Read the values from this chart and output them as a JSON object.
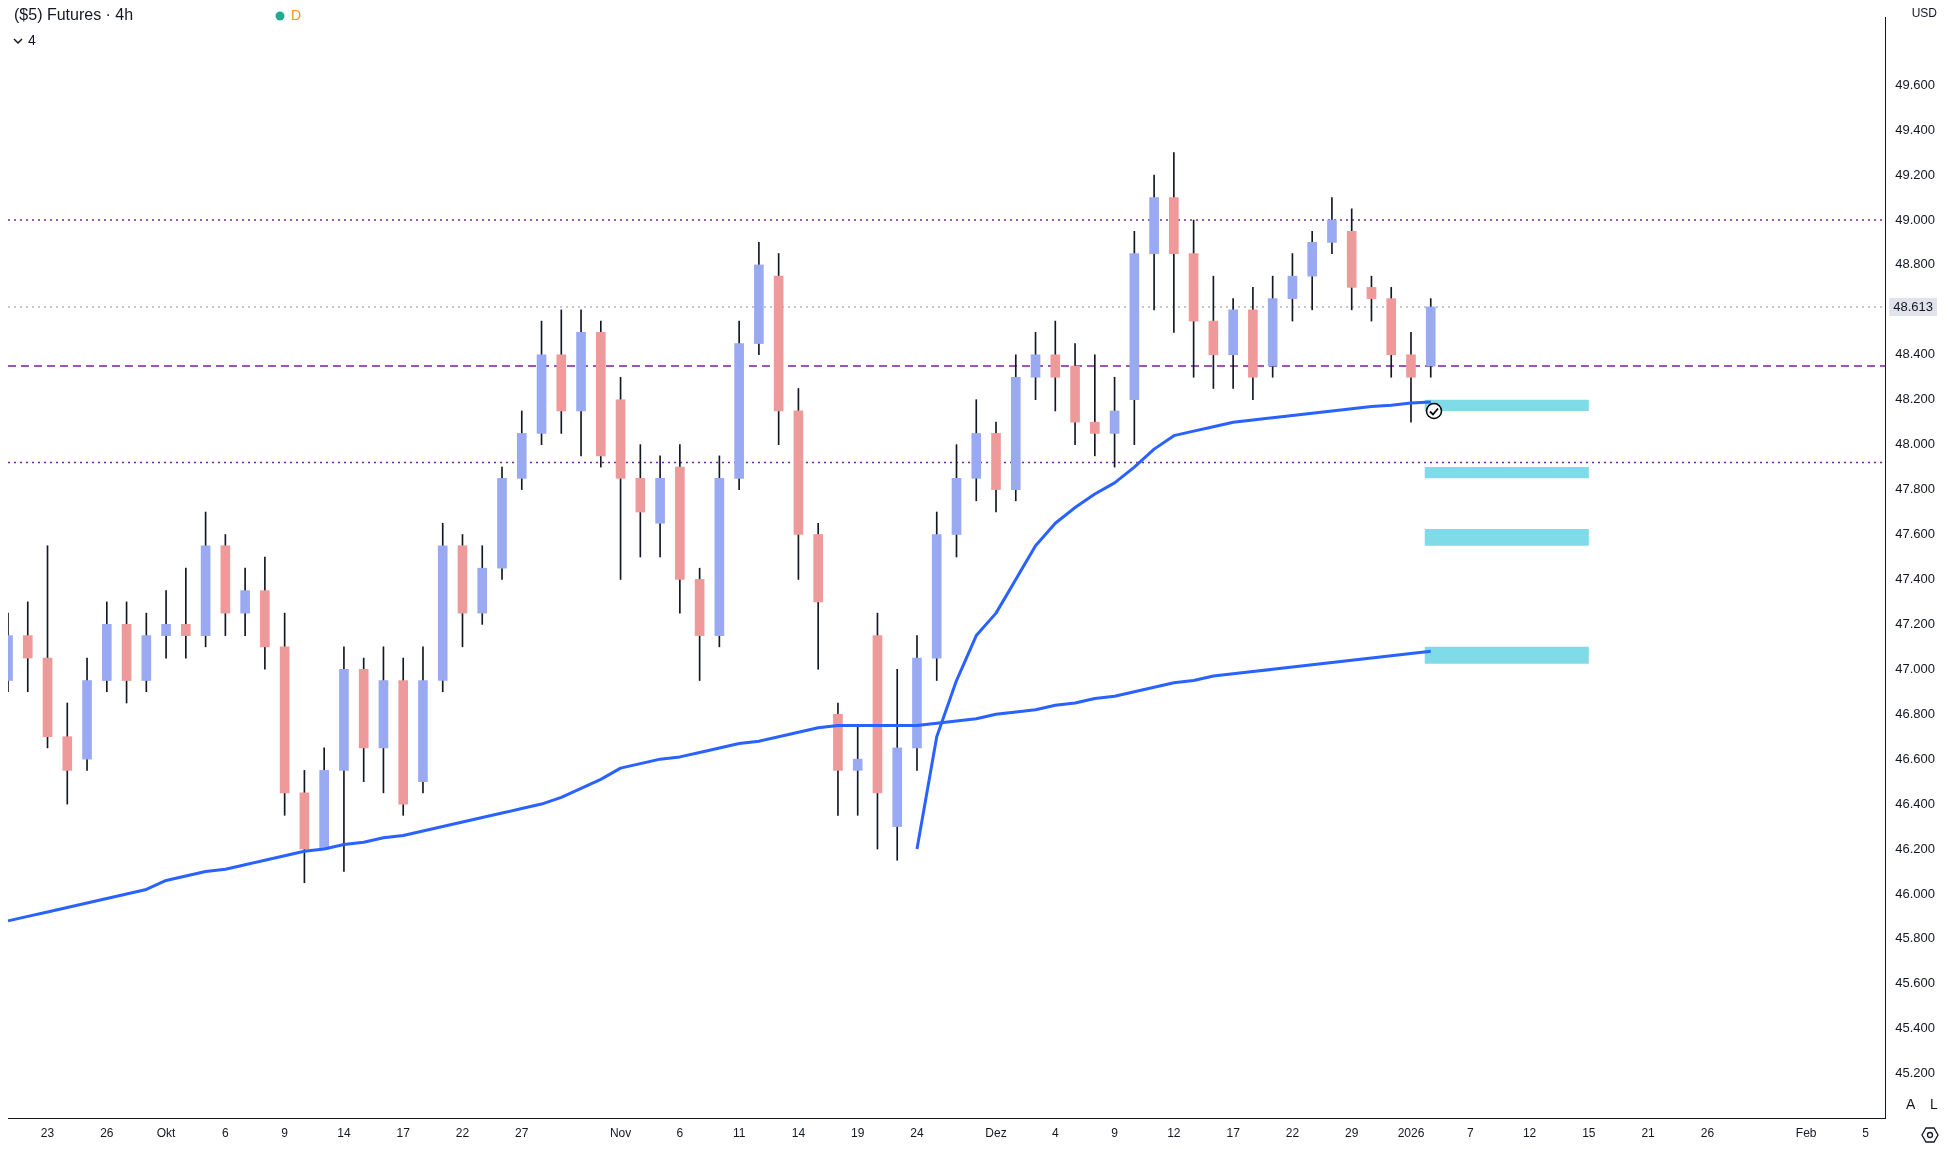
{
  "chart_data": {
    "type": "candlestick",
    "title": "($5) Futures · 4h",
    "ylabel": "USD",
    "annotations": [
      "4",
      "D",
      "A",
      "L"
    ],
    "categories": [
      null,
      null,
      "23",
      null,
      null,
      "26",
      null,
      null,
      "Okt",
      null,
      null,
      "6",
      null,
      null,
      "9",
      null,
      null,
      "14",
      null,
      null,
      "17",
      null,
      null,
      "22",
      null,
      null,
      "27",
      null,
      null,
      null,
      null,
      "Nov",
      null,
      null,
      "6",
      null,
      null,
      "11",
      null,
      null,
      "14",
      null,
      null,
      "19",
      null,
      null,
      "24",
      null,
      null,
      null,
      "Dez",
      null,
      null,
      "4",
      null,
      null,
      "9",
      null,
      null,
      "12",
      null,
      null,
      "17",
      null,
      null,
      "22",
      null,
      null,
      "29",
      null,
      null,
      "2026",
      null,
      null,
      "7",
      null,
      null,
      "12",
      null,
      null,
      "15",
      null,
      null,
      "21",
      null,
      null,
      "26",
      null,
      null,
      null,
      null,
      "Feb",
      null,
      null,
      "5",
      null
    ],
    "ohlc": [
      [
        46950,
        47250,
        46900,
        47150
      ],
      [
        47150,
        47300,
        46900,
        47050
      ],
      [
        47050,
        47550,
        46650,
        46700
      ],
      [
        46700,
        46850,
        46400,
        46550
      ],
      [
        46600,
        47050,
        46550,
        46950
      ],
      [
        46950,
        47300,
        46900,
        47200
      ],
      [
        47200,
        47300,
        46850,
        46950
      ],
      [
        46950,
        47250,
        46900,
        47150
      ],
      [
        47150,
        47350,
        47050,
        47200
      ],
      [
        47200,
        47450,
        47050,
        47150
      ],
      [
        47150,
        47700,
        47100,
        47550
      ],
      [
        47550,
        47600,
        47150,
        47250
      ],
      [
        47250,
        47450,
        47150,
        47350
      ],
      [
        47350,
        47500,
        47000,
        47100
      ],
      [
        47100,
        47250,
        46350,
        46450
      ],
      [
        46450,
        46550,
        46050,
        46200
      ],
      [
        46200,
        46650,
        46200,
        46550
      ],
      [
        46550,
        47100,
        46100,
        47000
      ],
      [
        47000,
        47050,
        46500,
        46650
      ],
      [
        46650,
        47100,
        46450,
        46950
      ],
      [
        46950,
        47050,
        46350,
        46400
      ],
      [
        46500,
        47100,
        46450,
        46950
      ],
      [
        46950,
        47650,
        46900,
        47550
      ],
      [
        47550,
        47600,
        47100,
        47250
      ],
      [
        47250,
        47550,
        47200,
        47450
      ],
      [
        47450,
        47900,
        47400,
        47850
      ],
      [
        47850,
        48150,
        47800,
        48050
      ],
      [
        48050,
        48550,
        48000,
        48400
      ],
      [
        48400,
        48600,
        48050,
        48150
      ],
      [
        48150,
        48600,
        47950,
        48500
      ],
      [
        48500,
        48550,
        47900,
        47950
      ],
      [
        48200,
        48300,
        47400,
        47850
      ],
      [
        47850,
        48000,
        47500,
        47700
      ],
      [
        47650,
        47950,
        47500,
        47850
      ],
      [
        47900,
        48000,
        47250,
        47400
      ],
      [
        47400,
        47450,
        46950,
        47150
      ],
      [
        47150,
        47950,
        47100,
        47850
      ],
      [
        47850,
        48550,
        47800,
        48450
      ],
      [
        48450,
        48900,
        48400,
        48800
      ],
      [
        48750,
        48850,
        48000,
        48150
      ],
      [
        48150,
        48250,
        47400,
        47600
      ],
      [
        47600,
        47650,
        47000,
        47300
      ],
      [
        46800,
        46850,
        46350,
        46550
      ],
      [
        46550,
        46750,
        46350,
        46600
      ],
      [
        47150,
        47250,
        46200,
        46450
      ],
      [
        46300,
        47000,
        46150,
        46650
      ],
      [
        46650,
        47150,
        46550,
        47050
      ],
      [
        47050,
        47700,
        46950,
        47600
      ],
      [
        47600,
        48000,
        47500,
        47850
      ],
      [
        47850,
        48200,
        47750,
        48050
      ],
      [
        48050,
        48100,
        47700,
        47800
      ],
      [
        47800,
        48400,
        47750,
        48300
      ],
      [
        48300,
        48500,
        48200,
        48400
      ],
      [
        48400,
        48550,
        48150,
        48300
      ],
      [
        48350,
        48450,
        48000,
        48100
      ],
      [
        48100,
        48400,
        47950,
        48050
      ],
      [
        48050,
        48300,
        47900,
        48150
      ],
      [
        48200,
        48950,
        48000,
        48850
      ],
      [
        48850,
        49200,
        48600,
        49100
      ],
      [
        49100,
        49300,
        48500,
        48850
      ],
      [
        48850,
        49000,
        48300,
        48550
      ],
      [
        48550,
        48750,
        48250,
        48400
      ],
      [
        48400,
        48650,
        48250,
        48600
      ],
      [
        48600,
        48700,
        48200,
        48300
      ],
      [
        48350,
        48750,
        48300,
        48650
      ],
      [
        48650,
        48850,
        48550,
        48750
      ],
      [
        48750,
        48950,
        48600,
        48900
      ],
      [
        48900,
        49100,
        48850,
        49000
      ],
      [
        48950,
        49050,
        48600,
        48700
      ],
      [
        48700,
        48750,
        48550,
        48650
      ],
      [
        48650,
        48700,
        48300,
        48400
      ],
      [
        48400,
        48500,
        48100,
        48300
      ],
      [
        48350,
        48650,
        48300,
        48613
      ],
      null,
      null,
      null,
      null,
      null,
      null,
      null,
      null,
      null,
      null,
      null,
      null,
      null,
      null,
      null,
      null,
      null,
      null,
      null,
      null,
      null,
      null,
      null
    ],
    "colors": [
      "#9aaaf2",
      "#ef9a9a",
      "#ef9a9a",
      "#ef9a9a",
      "#9aaaf2",
      "#9aaaf2",
      "#ef9a9a",
      "#9aaaf2",
      "#9aaaf2",
      "#ef9a9a",
      "#9aaaf2",
      "#ef9a9a",
      "#9aaaf2",
      "#ef9a9a",
      "#ef9a9a",
      "#ef9a9a",
      "#9aaaf2",
      "#9aaaf2",
      "#ef9a9a",
      "#9aaaf2",
      "#ef9a9a",
      "#9aaaf2",
      "#9aaaf2",
      "#ef9a9a",
      "#9aaaf2",
      "#9aaaf2",
      "#9aaaf2",
      "#9aaaf2",
      "#ef9a9a",
      "#9aaaf2",
      "#ef9a9a",
      "#ef9a9a",
      "#ef9a9a",
      "#9aaaf2",
      "#ef9a9a",
      "#ef9a9a",
      "#9aaaf2",
      "#9aaaf2",
      "#9aaaf2",
      "#ef9a9a",
      "#ef9a9a",
      "#ef9a9a",
      "#ef9a9a",
      "#9aaaf2",
      "#ef9a9a",
      "#9aaaf2",
      "#9aaaf2",
      "#9aaaf2",
      "#9aaaf2",
      "#9aaaf2",
      "#ef9a9a",
      "#9aaaf2",
      "#9aaaf2",
      "#ef9a9a",
      "#ef9a9a",
      "#ef9a9a",
      "#9aaaf2",
      "#9aaaf2",
      "#9aaaf2",
      "#ef9a9a",
      "#ef9a9a",
      "#ef9a9a",
      "#9aaaf2",
      "#ef9a9a",
      "#9aaaf2",
      "#9aaaf2",
      "#9aaaf2",
      "#9aaaf2",
      "#ef9a9a",
      "#ef9a9a",
      "#ef9a9a",
      "#ef9a9a",
      "#9aaaf2",
      null,
      null,
      null,
      null,
      null,
      null,
      null,
      null,
      null,
      null,
      null,
      null,
      null,
      null,
      null,
      null,
      null,
      null,
      null,
      null,
      null,
      null,
      null
    ],
    "series": [
      {
        "type": "line",
        "color": "#2962ff",
        "values": [
          45880,
          45900,
          45920,
          45940,
          45960,
          45980,
          46000,
          46020,
          46060,
          46080,
          46100,
          46110,
          46130,
          46150,
          46170,
          46190,
          46200,
          46220,
          46230,
          46250,
          46260,
          46280,
          46300,
          46320,
          46340,
          46360,
          46380,
          46400,
          46430,
          46470,
          46510,
          46560,
          46580,
          46600,
          46610,
          46630,
          46650,
          46670,
          46680,
          46700,
          46720,
          46740,
          46750,
          46750,
          46750,
          46750,
          46750,
          46760,
          46770,
          46780,
          46800,
          46810,
          46820,
          46840,
          46850,
          46870,
          46880,
          46900,
          46920,
          46940,
          46950,
          46970,
          46980,
          46990,
          47000,
          47010,
          47020,
          47030,
          47040,
          47050,
          47060,
          47070,
          47080,
          null,
          null,
          null,
          null,
          null,
          null,
          null,
          null,
          null,
          null,
          null,
          null,
          null,
          null,
          null,
          null,
          null,
          null,
          null,
          null,
          null,
          null,
          null
        ]
      },
      {
        "type": "line",
        "color": "#2962ff",
        "values": [
          null,
          null,
          null,
          null,
          null,
          null,
          null,
          null,
          null,
          null,
          null,
          null,
          null,
          null,
          null,
          null,
          null,
          null,
          null,
          null,
          null,
          null,
          null,
          null,
          null,
          null,
          null,
          null,
          null,
          null,
          null,
          null,
          null,
          null,
          null,
          null,
          null,
          null,
          null,
          null,
          null,
          null,
          null,
          null,
          null,
          null,
          46200,
          46700,
          46950,
          47150,
          47250,
          47400,
          47550,
          47650,
          47720,
          47780,
          47830,
          47900,
          47980,
          48040,
          48060,
          48080,
          48100,
          48110,
          48120,
          48130,
          48140,
          48150,
          48160,
          48170,
          48175,
          48185,
          48190,
          null,
          null,
          null,
          null,
          null,
          null,
          null,
          null,
          null,
          null,
          null,
          null,
          null,
          null,
          null,
          null,
          null,
          null,
          null,
          null,
          null,
          null,
          null
        ]
      }
    ],
    "ylim": [
      45000,
      49900
    ],
    "yticks": [
      {
        "value": 45200,
        "label": "45.200"
      },
      {
        "value": 45400,
        "label": "45.400"
      },
      {
        "value": 45600,
        "label": "45.600"
      },
      {
        "value": 45800,
        "label": "45.800"
      },
      {
        "value": 46000,
        "label": "46.000"
      },
      {
        "value": 46200,
        "label": "46.200"
      },
      {
        "value": 46400,
        "label": "46.400"
      },
      {
        "value": 46600,
        "label": "46.600"
      },
      {
        "value": 46800,
        "label": "46.800"
      },
      {
        "value": 47000,
        "label": "47.000"
      },
      {
        "value": 47200,
        "label": "47.200"
      },
      {
        "value": 47400,
        "label": "47.400"
      },
      {
        "value": 47600,
        "label": "47.600"
      },
      {
        "value": 47800,
        "label": "47.800"
      },
      {
        "value": 48000,
        "label": "48.000"
      },
      {
        "value": 48200,
        "label": "48.200"
      },
      {
        "value": 48400,
        "label": "48.400"
      },
      {
        "value": 48800,
        "label": "48.800"
      },
      {
        "value": 49000,
        "label": "49.000"
      },
      {
        "value": 49200,
        "label": "49.200"
      },
      {
        "value": 49400,
        "label": "49.400"
      },
      {
        "value": 49600,
        "label": "49.600"
      }
    ],
    "ref_lines": [
      {
        "axis": "y",
        "value": 49000,
        "color": "#7b1fa2",
        "line_style": "dotted"
      },
      {
        "axis": "y",
        "value": 48350,
        "color": "#7b1fa2",
        "line_style": "dashed"
      },
      {
        "axis": "y",
        "value": 47920,
        "color": "#7b1fa2",
        "line_style": "dotted"
      },
      {
        "axis": "y",
        "value": 48613,
        "label": "48.613",
        "color": "#b2b5be",
        "line_style": "dotted"
      }
    ],
    "bands": [
      {
        "axis": "y",
        "from": 48150,
        "to": 48200,
        "color": "#80dbe8"
      },
      {
        "axis": "y",
        "from": 47850,
        "to": 47900,
        "color": "#80dbe8"
      },
      {
        "axis": "y",
        "from": 47550,
        "to": 47625,
        "color": "#80dbe8"
      },
      {
        "axis": "y",
        "from": 47025,
        "to": 47100,
        "color": "#80dbe8"
      }
    ],
    "grid": false,
    "legend": false
  }
}
